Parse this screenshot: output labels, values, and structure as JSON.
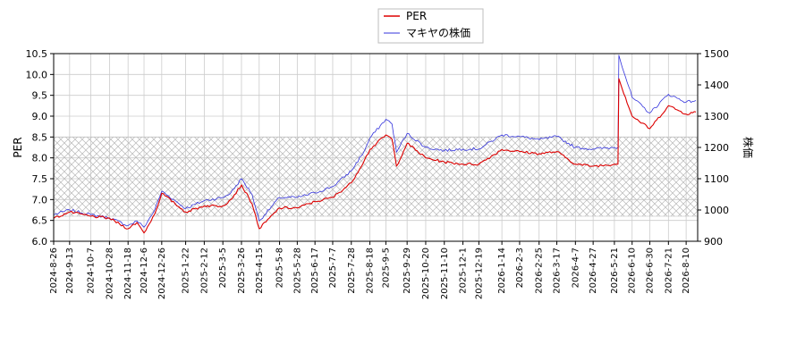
{
  "chart_data": {
    "type": "line",
    "legend": {
      "position": "top-center",
      "entries": [
        {
          "label": "PER",
          "color": "#dd0000"
        },
        {
          "label": "マキヤの株価",
          "color": "#3333dd"
        }
      ]
    },
    "ylabel_left": "PER",
    "ylabel_right": "株価",
    "ylim_left": [
      6.0,
      10.5
    ],
    "ylim_right": [
      900,
      1500
    ],
    "yticks_left": [
      "6.0",
      "6.5",
      "7.0",
      "7.5",
      "8.0",
      "8.5",
      "9.0",
      "9.5",
      "10.0",
      "10.5"
    ],
    "yticks_right": [
      "900",
      "1000",
      "1100",
      "1200",
      "1300",
      "1400",
      "1500"
    ],
    "xlim": [
      "2024-08-26",
      "2026-08-23"
    ],
    "xticks": [
      "2024-8-26",
      "2024-9-13",
      "2024-10-7",
      "2024-10-28",
      "2024-11-18",
      "2024-12-6",
      "2024-12-26",
      "2025-1-22",
      "2025-2-12",
      "2025-3-5",
      "2025-3-26",
      "2025-4-15",
      "2025-5-8",
      "2025-5-28",
      "2025-6-17",
      "2025-7-7",
      "2025-7-28",
      "2025-8-18",
      "2025-9-5",
      "2025-9-29",
      "2025-10-20",
      "2025-11-10",
      "2025-12-1",
      "2025-12-19",
      "2026-1-14",
      "2026-2-3",
      "2026-2-25",
      "2026-3-17",
      "2026-4-7",
      "2026-4-27",
      "2026-5-21",
      "2026-6-10",
      "2026-6-30",
      "2026-7-21",
      "2026-8-10"
    ],
    "grid": true,
    "hatched_band_left": [
      6.6,
      8.5
    ],
    "series": [
      {
        "name": "PER",
        "axis": "left",
        "color": "#dd0000",
        "x": [
          "2024-08-26",
          "2024-09-13",
          "2024-10-07",
          "2024-10-28",
          "2024-11-18",
          "2024-11-28",
          "2024-12-06",
          "2024-12-18",
          "2024-12-26",
          "2025-01-10",
          "2025-01-22",
          "2025-02-12",
          "2025-03-05",
          "2025-03-14",
          "2025-03-26",
          "2025-04-07",
          "2025-04-15",
          "2025-05-08",
          "2025-05-28",
          "2025-06-17",
          "2025-07-07",
          "2025-07-28",
          "2025-08-12",
          "2025-08-18",
          "2025-09-05",
          "2025-09-12",
          "2025-09-17",
          "2025-09-29",
          "2025-10-20",
          "2025-11-10",
          "2025-12-01",
          "2025-12-19",
          "2026-01-14",
          "2026-02-03",
          "2026-02-25",
          "2026-03-17",
          "2026-04-07",
          "2026-04-27",
          "2026-05-21",
          "2026-05-25",
          "2026-05-26",
          "2026-06-10",
          "2026-06-30",
          "2026-07-21",
          "2026-08-10",
          "2026-08-21"
        ],
        "y": [
          6.55,
          6.7,
          6.6,
          6.55,
          6.3,
          6.45,
          6.2,
          6.65,
          7.15,
          6.9,
          6.7,
          6.85,
          6.85,
          7.0,
          7.35,
          6.9,
          6.3,
          6.8,
          6.8,
          6.95,
          7.05,
          7.4,
          7.95,
          8.2,
          8.55,
          8.45,
          7.8,
          8.35,
          8.0,
          7.9,
          7.85,
          7.85,
          8.2,
          8.15,
          8.1,
          8.15,
          7.85,
          7.8,
          7.85,
          7.85,
          9.9,
          9.0,
          8.7,
          9.25,
          9.05,
          9.1
        ]
      },
      {
        "name": "マキヤの株価",
        "axis": "right",
        "color": "#3333dd",
        "x": [
          "2024-08-26",
          "2024-09-13",
          "2024-10-07",
          "2024-10-28",
          "2024-11-18",
          "2024-11-28",
          "2024-12-06",
          "2024-12-18",
          "2024-12-26",
          "2025-01-10",
          "2025-01-22",
          "2025-02-12",
          "2025-03-05",
          "2025-03-14",
          "2025-03-26",
          "2025-04-07",
          "2025-04-15",
          "2025-05-08",
          "2025-05-28",
          "2025-06-17",
          "2025-07-07",
          "2025-07-28",
          "2025-08-12",
          "2025-08-18",
          "2025-09-05",
          "2025-09-12",
          "2025-09-17",
          "2025-09-29",
          "2025-10-20",
          "2025-11-10",
          "2025-12-01",
          "2025-12-19",
          "2026-01-14",
          "2026-02-03",
          "2026-02-25",
          "2026-03-17",
          "2026-04-07",
          "2026-04-27",
          "2026-05-21",
          "2026-05-25",
          "2026-05-26",
          "2026-06-10",
          "2026-06-30",
          "2026-07-21",
          "2026-08-10",
          "2026-08-21"
        ],
        "y": [
          985,
          1000,
          985,
          975,
          950,
          965,
          945,
          1000,
          1060,
          1030,
          1005,
          1030,
          1040,
          1055,
          1100,
          1050,
          965,
          1040,
          1040,
          1055,
          1075,
          1125,
          1190,
          1230,
          1290,
          1275,
          1185,
          1245,
          1200,
          1190,
          1195,
          1195,
          1240,
          1235,
          1225,
          1235,
          1200,
          1195,
          1200,
          1200,
          1495,
          1360,
          1310,
          1370,
          1345,
          1350
        ]
      }
    ]
  }
}
